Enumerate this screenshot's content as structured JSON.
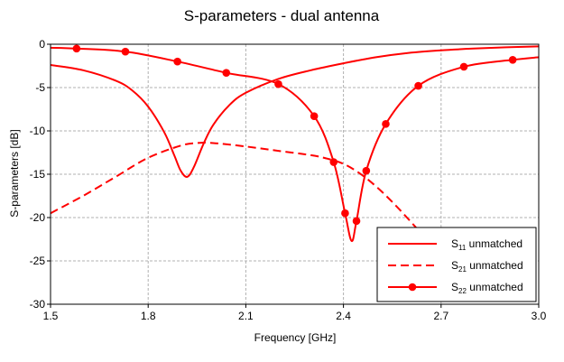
{
  "chart_data": {
    "type": "line",
    "title": "S-parameters - dual antenna",
    "xlabel": "Frequency [GHz]",
    "ylabel": "S-parameters [dB]",
    "xlim": [
      1.5,
      3.0
    ],
    "ylim": [
      -30,
      0
    ],
    "x_ticks": [
      1.5,
      1.8,
      2.1,
      2.4,
      2.7,
      3.0
    ],
    "x_tick_labels": [
      "1.5",
      "1.8",
      "2.1",
      "2.4",
      "2.7",
      "3.0"
    ],
    "y_ticks": [
      0,
      -5,
      -10,
      -15,
      -20,
      -25,
      -30
    ],
    "y_tick_labels": [
      "0",
      "-5",
      "-10",
      "-15",
      "-20",
      "-25",
      "-30"
    ],
    "grid": true,
    "legend_position": "bottom-right",
    "colors": {
      "series": "#ff0000",
      "grid": "#b0b0b0",
      "frame": "#000000"
    },
    "series": [
      {
        "name": "S11 unmatched",
        "legend_base": "S",
        "legend_sub": "11",
        "legend_rest": " unmatched",
        "style": "solid",
        "marker": "none",
        "x": [
          1.5,
          1.6,
          1.7,
          1.75,
          1.8,
          1.85,
          1.88,
          1.9,
          1.92,
          1.94,
          1.97,
          2.0,
          2.05,
          2.1,
          2.2,
          2.3,
          2.4,
          2.5,
          2.6,
          2.7,
          2.8,
          2.9,
          3.0
        ],
        "y": [
          -2.4,
          -3.0,
          -4.2,
          -5.3,
          -7.2,
          -10.2,
          -12.8,
          -14.6,
          -15.3,
          -14.2,
          -11.5,
          -9.3,
          -7.0,
          -5.6,
          -4.0,
          -3.0,
          -2.2,
          -1.5,
          -1.0,
          -0.7,
          -0.5,
          -0.35,
          -0.25
        ]
      },
      {
        "name": "S21 unmatched",
        "legend_base": "S",
        "legend_sub": "21",
        "legend_rest": " unmatched",
        "style": "dashed",
        "marker": "none",
        "x": [
          1.5,
          1.6,
          1.7,
          1.8,
          1.9,
          1.95,
          2.0,
          2.1,
          2.2,
          2.3,
          2.35,
          2.4,
          2.45,
          2.5,
          2.55,
          2.6,
          2.65,
          2.675
        ],
        "y": [
          -19.5,
          -17.5,
          -15.3,
          -13.1,
          -11.7,
          -11.4,
          -11.4,
          -11.8,
          -12.3,
          -12.8,
          -13.2,
          -13.8,
          -14.9,
          -16.4,
          -18.2,
          -20.2,
          -22.3,
          -23.5
        ]
      },
      {
        "name": "S22 unmatched",
        "legend_base": "S",
        "legend_sub": "22",
        "legend_rest": " unmatched",
        "style": "solid",
        "marker": "circle",
        "x": [
          1.5,
          1.58,
          1.73,
          1.89,
          2.04,
          2.2,
          2.31,
          2.37,
          2.405,
          2.425,
          2.44,
          2.47,
          2.53,
          2.63,
          2.77,
          2.92,
          3.0
        ],
        "y": [
          -0.4,
          -0.5,
          -0.85,
          -2.0,
          -3.3,
          -4.6,
          -8.3,
          -13.6,
          -19.5,
          -22.7,
          -20.4,
          -14.6,
          -9.2,
          -4.8,
          -2.6,
          -1.8,
          -1.5
        ],
        "markers_x": [
          1.58,
          1.73,
          1.89,
          2.04,
          2.2,
          2.31,
          2.37,
          2.405,
          2.44,
          2.47,
          2.53,
          2.63,
          2.77,
          2.92
        ],
        "markers_y": [
          -0.5,
          -0.85,
          -2.0,
          -3.3,
          -4.6,
          -8.3,
          -13.6,
          -19.5,
          -20.4,
          -14.6,
          -9.2,
          -4.8,
          -2.6,
          -1.8
        ]
      }
    ]
  }
}
